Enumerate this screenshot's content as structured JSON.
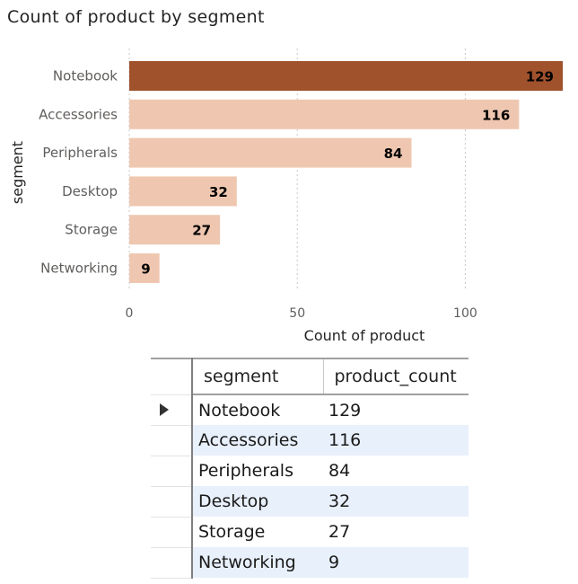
{
  "chart_data": {
    "type": "bar",
    "orientation": "horizontal",
    "title": "Count of product by segment",
    "xlabel": "Count of product",
    "ylabel": "segment",
    "categories": [
      "Notebook",
      "Accessories",
      "Peripherals",
      "Desktop",
      "Storage",
      "Networking"
    ],
    "values": [
      129,
      116,
      84,
      32,
      27,
      9
    ],
    "xlim": [
      0,
      129
    ],
    "xticks": [
      0,
      50,
      100
    ],
    "grid": true,
    "legend": "none",
    "colors": {
      "highlight": "#a0522d",
      "bar": "#efc7b0",
      "gridline": "#c8c8c8"
    }
  },
  "table": {
    "columns": [
      "segment",
      "product_count"
    ],
    "rows": [
      {
        "segment": "Notebook",
        "product_count": "129",
        "selected": true
      },
      {
        "segment": "Accessories",
        "product_count": "116",
        "selected": false
      },
      {
        "segment": "Peripherals",
        "product_count": "84",
        "selected": false
      },
      {
        "segment": "Desktop",
        "product_count": "32",
        "selected": false
      },
      {
        "segment": "Storage",
        "product_count": "27",
        "selected": false
      },
      {
        "segment": "Networking",
        "product_count": "9",
        "selected": false
      }
    ],
    "row_indicator_icon": "triangle-right-icon"
  }
}
